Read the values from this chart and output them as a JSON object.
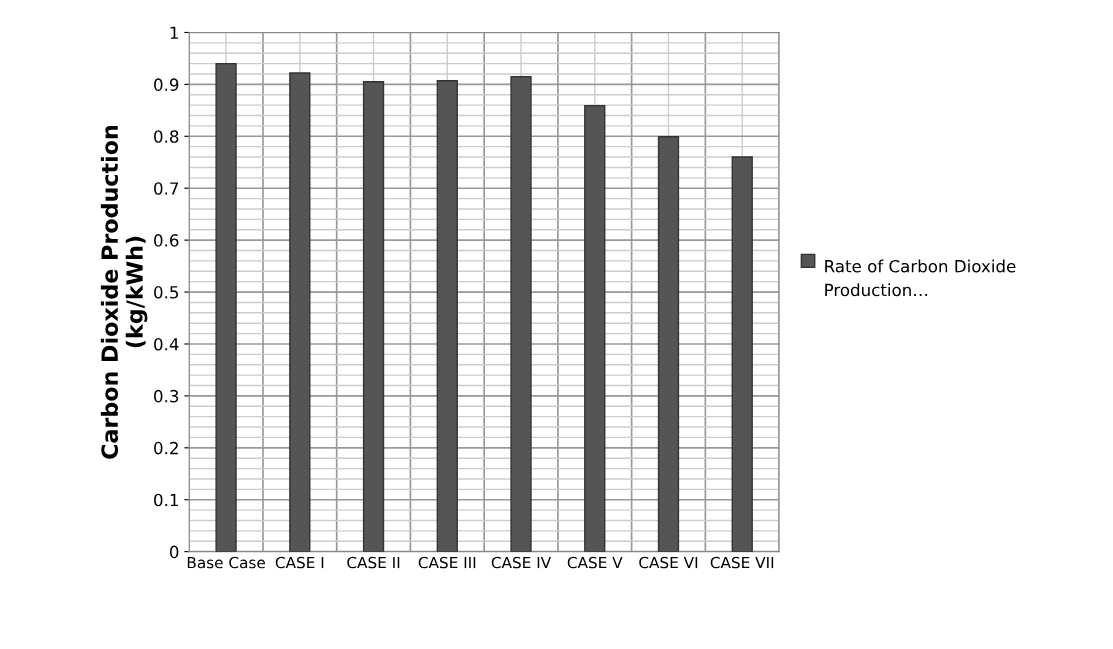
{
  "chart_data": {
    "type": "bar",
    "ylabel": "Carbon Dioxide Production\n(kg/kWh)",
    "categories": [
      "Base Case",
      "CASE I",
      "CASE II",
      "CASE III",
      "CASE IV",
      "CASE V",
      "CASE VI",
      "CASE VII"
    ],
    "series": [
      {
        "name": "Rate of Carbon Dioxide Production…",
        "color": "#555555",
        "values": [
          0.94,
          0.922,
          0.905,
          0.907,
          0.915,
          0.859,
          0.799,
          0.76
        ]
      }
    ],
    "ylim": [
      0,
      1
    ],
    "yticks": [
      0,
      0.1,
      0.2,
      0.3,
      0.4,
      0.5,
      0.6,
      0.7,
      0.8,
      0.9,
      1
    ],
    "grid": true,
    "legend": "right"
  }
}
